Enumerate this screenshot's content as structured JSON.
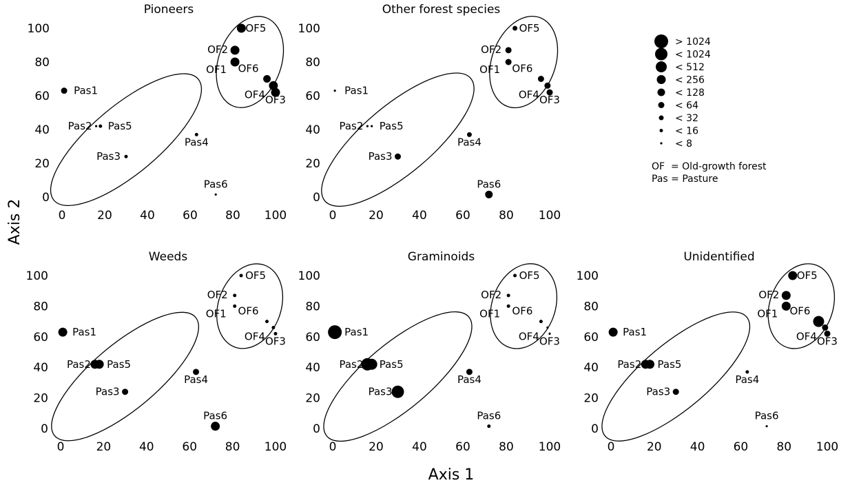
{
  "figure": {
    "x_axis_title": "Axis 1",
    "y_axis_title": "Axis 2"
  },
  "legend": {
    "size_classes": [
      "> 1024",
      "< 1024",
      "< 512",
      "< 256",
      "< 128",
      "< 64",
      "< 32",
      "< 16",
      "< 8"
    ],
    "notes": [
      "OF  = Old-growth forest",
      "Pas = Pasture"
    ]
  },
  "chart_data": [
    {
      "type": "scatter",
      "title": "Pioneers",
      "xlim": [
        0,
        100
      ],
      "ylim": [
        0,
        100
      ],
      "xticks": [
        0,
        20,
        40,
        60,
        80,
        100
      ],
      "yticks": [
        0,
        20,
        40,
        60,
        80,
        100
      ],
      "grid": false,
      "points": [
        {
          "label": "OF1",
          "x": 81,
          "y": 80,
          "size_class": "< 256"
        },
        {
          "label": "OF2",
          "x": 81,
          "y": 87,
          "size_class": "< 256"
        },
        {
          "label": "OF3",
          "x": 100,
          "y": 62,
          "size_class": "< 256"
        },
        {
          "label": "OF4",
          "x": 99,
          "y": 66,
          "size_class": "< 256"
        },
        {
          "label": "OF5",
          "x": 84,
          "y": 100,
          "size_class": "< 256"
        },
        {
          "label": "OF6",
          "x": 96,
          "y": 70,
          "size_class": "< 128"
        },
        {
          "label": "Pas1",
          "x": 1,
          "y": 63,
          "size_class": "< 64"
        },
        {
          "label": "Pas2",
          "x": 16,
          "y": 42,
          "size_class": "< 8"
        },
        {
          "label": "Pas3",
          "x": 30,
          "y": 24,
          "size_class": "< 16"
        },
        {
          "label": "Pas4",
          "x": 63,
          "y": 37,
          "size_class": "< 16"
        },
        {
          "label": "Pas5",
          "x": 18,
          "y": 42,
          "size_class": "< 16"
        },
        {
          "label": "Pas6",
          "x": 72,
          "y": 1.5,
          "size_class": "< 8"
        }
      ]
    },
    {
      "type": "scatter",
      "title": "Other forest species",
      "xlim": [
        0,
        100
      ],
      "ylim": [
        0,
        100
      ],
      "xticks": [
        0,
        20,
        40,
        60,
        80,
        100
      ],
      "yticks": [
        0,
        20,
        40,
        60,
        80,
        100
      ],
      "grid": false,
      "points": [
        {
          "label": "OF1",
          "x": 81,
          "y": 80,
          "size_class": "< 64"
        },
        {
          "label": "OF2",
          "x": 81,
          "y": 87,
          "size_class": "< 64"
        },
        {
          "label": "OF3",
          "x": 100,
          "y": 62,
          "size_class": "< 64"
        },
        {
          "label": "OF4",
          "x": 99,
          "y": 66,
          "size_class": "< 64"
        },
        {
          "label": "OF5",
          "x": 84,
          "y": 100,
          "size_class": "< 32"
        },
        {
          "label": "OF6",
          "x": 96,
          "y": 70,
          "size_class": "< 64"
        },
        {
          "label": "Pas1",
          "x": 1,
          "y": 63,
          "size_class": "< 8"
        },
        {
          "label": "Pas2",
          "x": 16,
          "y": 42,
          "size_class": "< 8"
        },
        {
          "label": "Pas3",
          "x": 30,
          "y": 24,
          "size_class": "< 64"
        },
        {
          "label": "Pas4",
          "x": 63,
          "y": 37,
          "size_class": "< 32"
        },
        {
          "label": "Pas5",
          "x": 18,
          "y": 42,
          "size_class": "< 8"
        },
        {
          "label": "Pas6",
          "x": 72,
          "y": 1.5,
          "size_class": "< 128"
        }
      ]
    },
    {
      "type": "scatter",
      "title": "Weeds",
      "xlim": [
        0,
        100
      ],
      "ylim": [
        0,
        100
      ],
      "xticks": [
        0,
        20,
        40,
        60,
        80,
        100
      ],
      "yticks": [
        0,
        20,
        40,
        60,
        80,
        100
      ],
      "grid": false,
      "points": [
        {
          "label": "OF1",
          "x": 81,
          "y": 80,
          "size_class": "< 16"
        },
        {
          "label": "OF2",
          "x": 81,
          "y": 87,
          "size_class": "< 16"
        },
        {
          "label": "OF3",
          "x": 100,
          "y": 62,
          "size_class": "< 16"
        },
        {
          "label": "OF4",
          "x": 99,
          "y": 66,
          "size_class": "< 16"
        },
        {
          "label": "OF5",
          "x": 84,
          "y": 100,
          "size_class": "< 16"
        },
        {
          "label": "OF6",
          "x": 96,
          "y": 70,
          "size_class": "< 16"
        },
        {
          "label": "Pas1",
          "x": 1,
          "y": 63,
          "size_class": "< 256"
        },
        {
          "label": "Pas2",
          "x": 16,
          "y": 42,
          "size_class": "< 256"
        },
        {
          "label": "Pas3",
          "x": 30,
          "y": 24,
          "size_class": "< 64"
        },
        {
          "label": "Pas4",
          "x": 63,
          "y": 37,
          "size_class": "< 64"
        },
        {
          "label": "Pas5",
          "x": 18,
          "y": 42,
          "size_class": "< 256"
        },
        {
          "label": "Pas6",
          "x": 72,
          "y": 1.5,
          "size_class": "< 256"
        }
      ]
    },
    {
      "type": "scatter",
      "title": "Graminoids",
      "xlim": [
        0,
        100
      ],
      "ylim": [
        0,
        100
      ],
      "xticks": [
        0,
        20,
        40,
        60,
        80,
        100
      ],
      "yticks": [
        0,
        20,
        40,
        60,
        80,
        100
      ],
      "grid": false,
      "points": [
        {
          "label": "OF1",
          "x": 81,
          "y": 80,
          "size_class": "< 16"
        },
        {
          "label": "OF2",
          "x": 81,
          "y": 87,
          "size_class": "< 16"
        },
        {
          "label": "OF3",
          "x": 100,
          "y": 62,
          "size_class": "< 8"
        },
        {
          "label": "OF4",
          "x": 99,
          "y": 66,
          "size_class": "< 8"
        },
        {
          "label": "OF5",
          "x": 84,
          "y": 100,
          "size_class": "< 16"
        },
        {
          "label": "OF6",
          "x": 96,
          "y": 70,
          "size_class": "< 16"
        },
        {
          "label": "Pas1",
          "x": 1,
          "y": 63,
          "size_class": "> 1024"
        },
        {
          "label": "Pas2",
          "x": 16,
          "y": 42,
          "size_class": "< 1024"
        },
        {
          "label": "Pas3",
          "x": 30,
          "y": 24,
          "size_class": "< 1024"
        },
        {
          "label": "Pas4",
          "x": 63,
          "y": 37,
          "size_class": "< 64"
        },
        {
          "label": "Pas5",
          "x": 18,
          "y": 42,
          "size_class": "< 512"
        },
        {
          "label": "Pas6",
          "x": 72,
          "y": 1.5,
          "size_class": "< 16"
        }
      ]
    },
    {
      "type": "scatter",
      "title": "Unidentified",
      "xlim": [
        0,
        100
      ],
      "ylim": [
        0,
        100
      ],
      "xticks": [
        0,
        20,
        40,
        60,
        80,
        100
      ],
      "yticks": [
        0,
        20,
        40,
        60,
        80,
        100
      ],
      "grid": false,
      "points": [
        {
          "label": "OF1",
          "x": 81,
          "y": 80,
          "size_class": "< 256"
        },
        {
          "label": "OF2",
          "x": 81,
          "y": 87,
          "size_class": "< 256"
        },
        {
          "label": "OF3",
          "x": 100,
          "y": 62,
          "size_class": "< 64"
        },
        {
          "label": "OF4",
          "x": 99,
          "y": 66,
          "size_class": "< 64"
        },
        {
          "label": "OF5",
          "x": 84,
          "y": 100,
          "size_class": "< 256"
        },
        {
          "label": "OF6",
          "x": 96,
          "y": 70,
          "size_class": "< 512"
        },
        {
          "label": "Pas1",
          "x": 1,
          "y": 63,
          "size_class": "< 256"
        },
        {
          "label": "Pas2",
          "x": 16,
          "y": 42,
          "size_class": "< 256"
        },
        {
          "label": "Pas3",
          "x": 30,
          "y": 24,
          "size_class": "< 64"
        },
        {
          "label": "Pas4",
          "x": 63,
          "y": 37,
          "size_class": "< 16"
        },
        {
          "label": "Pas5",
          "x": 18,
          "y": 42,
          "size_class": "< 256"
        },
        {
          "label": "Pas6",
          "x": 72,
          "y": 1.5,
          "size_class": "< 8"
        }
      ]
    }
  ]
}
